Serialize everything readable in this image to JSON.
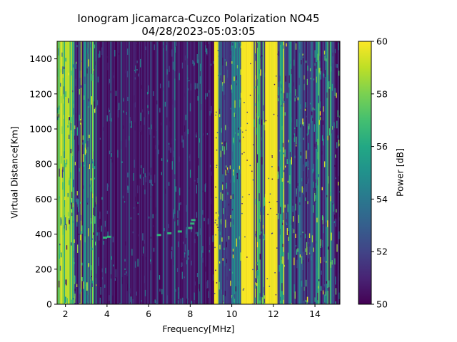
{
  "chart_data": {
    "type": "heatmap",
    "title": "Ionogram Jicamarca-Cuzco Polarization NO45",
    "subtitle": "04/28/2023-05:03:05",
    "xlabel": "Frequency[MHz]",
    "ylabel": "Virtual Distance[Km]",
    "xlim": [
      1.6,
      15.2
    ],
    "ylim": [
      0,
      1500
    ],
    "x_ticks": [
      2,
      4,
      6,
      8,
      10,
      12,
      14
    ],
    "y_ticks": [
      0,
      200,
      400,
      600,
      800,
      1000,
      1200,
      1400
    ],
    "colormap": "viridis",
    "colorbar": {
      "label": "Power [dB]",
      "min": 50,
      "max": 60,
      "ticks": [
        50,
        52,
        54,
        56,
        58,
        60
      ]
    },
    "band_levels": [
      {
        "x_range": [
          1.6,
          2.4
        ],
        "level": "high",
        "description_value_db": 59
      },
      {
        "x_range": [
          2.4,
          3.5
        ],
        "level": "mixed",
        "description_value_db": 54
      },
      {
        "x_range": [
          3.5,
          9.1
        ],
        "level": "low",
        "description_value_db": 50.5
      },
      {
        "x_range": [
          9.15,
          9.35
        ],
        "level": "saturated",
        "description_value_db": 60
      },
      {
        "x_range": [
          9.35,
          10.45
        ],
        "level": "mixed",
        "description_value_db": 53
      },
      {
        "x_range": [
          10.45,
          11.05
        ],
        "level": "saturated",
        "description_value_db": 60
      },
      {
        "x_range": [
          11.05,
          11.6
        ],
        "level": "mixed",
        "description_value_db": 55
      },
      {
        "x_range": [
          11.6,
          12.2
        ],
        "level": "saturated",
        "description_value_db": 60
      },
      {
        "x_range": [
          12.2,
          13.5
        ],
        "level": "mixed",
        "description_value_db": 54
      },
      {
        "x_range": [
          13.5,
          15.2
        ],
        "level": "mixed-low",
        "description_value_db": 52
      }
    ],
    "echo_trace": [
      {
        "x": 3.9,
        "y": 380
      },
      {
        "x": 4.1,
        "y": 385
      },
      {
        "x": 6.5,
        "y": 395
      },
      {
        "x": 7.0,
        "y": 405
      },
      {
        "x": 7.5,
        "y": 415
      },
      {
        "x": 8.0,
        "y": 435
      },
      {
        "x": 8.1,
        "y": 460
      },
      {
        "x": 8.15,
        "y": 480
      }
    ],
    "colors": {
      "low": "#440154",
      "high": "#fde725",
      "axis": "#000000"
    }
  }
}
